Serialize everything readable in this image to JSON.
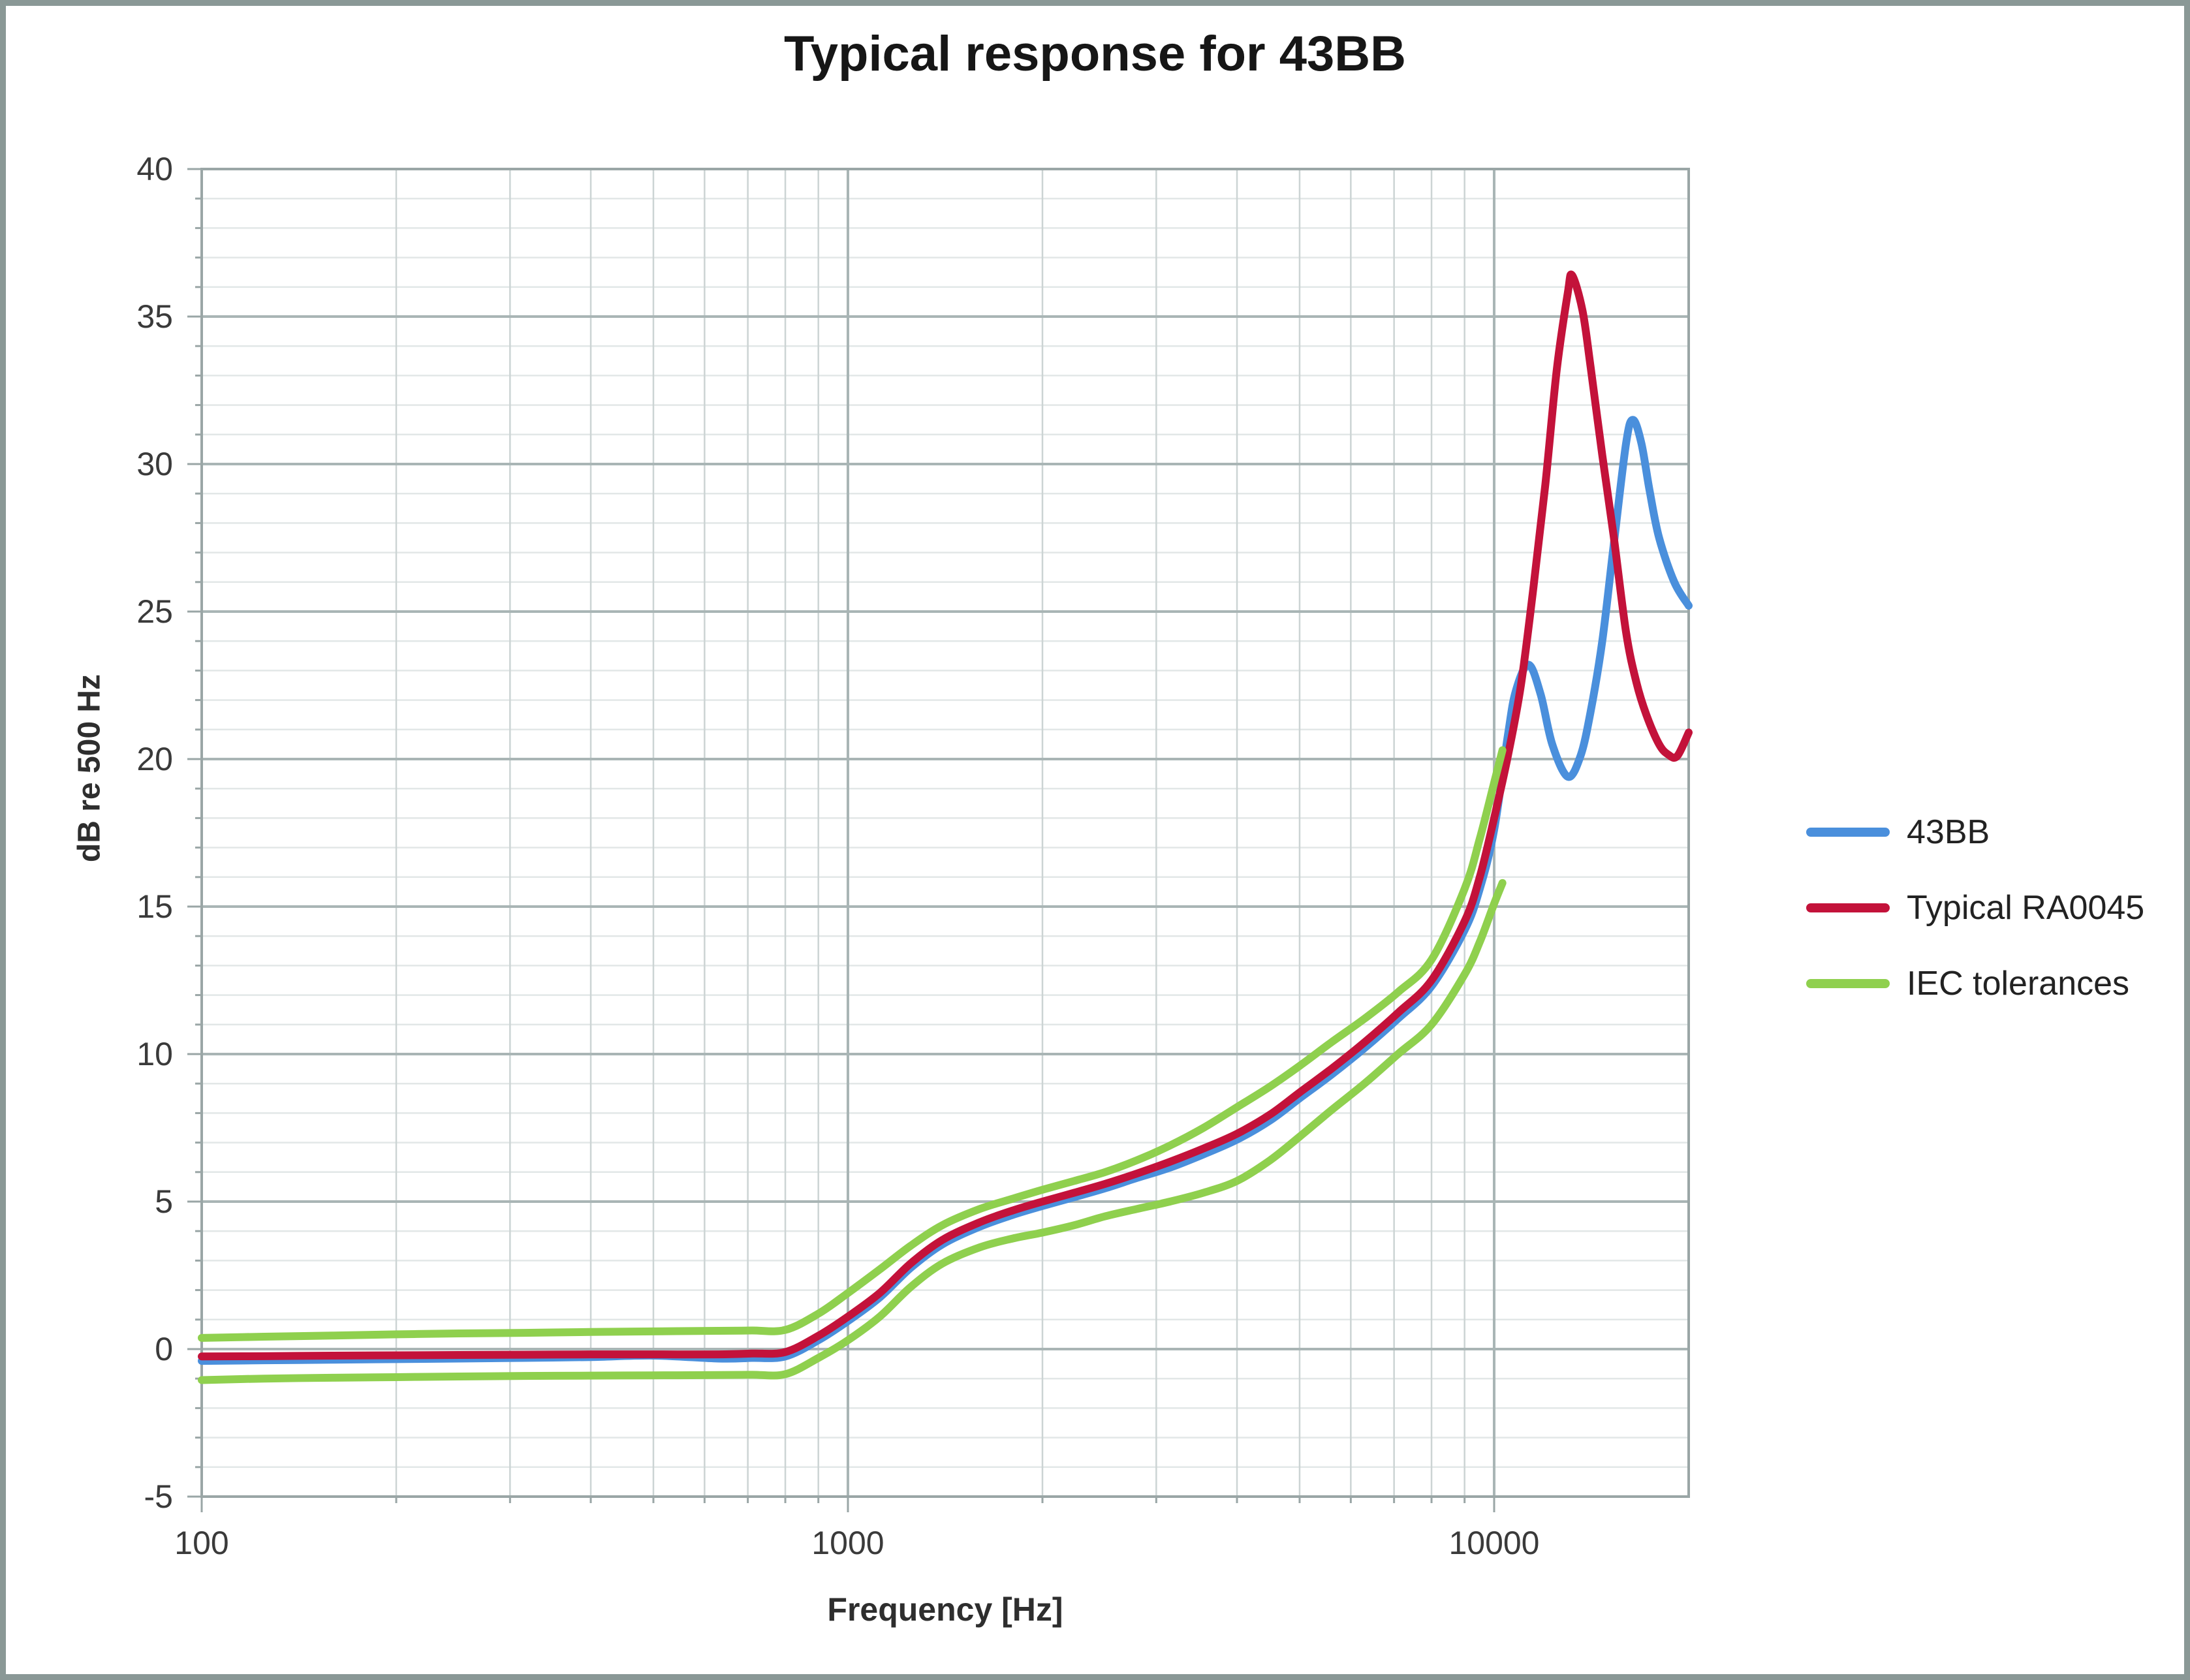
{
  "title": "Typical response for 43BB",
  "legend": {
    "items": [
      {
        "label": "43BB",
        "color": "#4a8fdc"
      },
      {
        "label": "Typical RA0045",
        "color": "#c3123a"
      },
      {
        "label": "IEC tolerances",
        "color": "#8fd04e"
      }
    ]
  },
  "chart_data": {
    "type": "line",
    "title": "Typical response for 43BB",
    "xlabel": "Frequency [Hz]",
    "ylabel": "dB re 500 Hz",
    "x_scale": "log",
    "xlim": [
      100,
      20000
    ],
    "ylim": [
      -5,
      40
    ],
    "x_ticks": [
      100,
      1000,
      10000
    ],
    "y_ticks": [
      -5,
      0,
      5,
      10,
      15,
      20,
      25,
      30,
      35,
      40
    ],
    "y_minor_step": 1,
    "grid": true,
    "legend_position": "right",
    "colors": {
      "grid_minor_h": "#e2e7e7",
      "grid_minor_v": "#ccd4d4",
      "grid_major": "#a9b5b5",
      "plot_border": "#9aa6a6",
      "tick_text": "#3a3a3a"
    },
    "series": [
      {
        "name": "43BB",
        "color": "#4a8fdc",
        "points": [
          [
            100,
            -0.4
          ],
          [
            125,
            -0.38
          ],
          [
            160,
            -0.36
          ],
          [
            200,
            -0.34
          ],
          [
            250,
            -0.32
          ],
          [
            315,
            -0.3
          ],
          [
            400,
            -0.27
          ],
          [
            500,
            -0.22
          ],
          [
            630,
            -0.32
          ],
          [
            710,
            -0.3
          ],
          [
            800,
            -0.25
          ],
          [
            900,
            0.3
          ],
          [
            1000,
            0.95
          ],
          [
            1120,
            1.75
          ],
          [
            1250,
            2.75
          ],
          [
            1400,
            3.55
          ],
          [
            1600,
            4.15
          ],
          [
            1800,
            4.55
          ],
          [
            2000,
            4.85
          ],
          [
            2240,
            5.15
          ],
          [
            2500,
            5.45
          ],
          [
            2800,
            5.8
          ],
          [
            3150,
            6.15
          ],
          [
            3550,
            6.6
          ],
          [
            4000,
            7.1
          ],
          [
            4500,
            7.75
          ],
          [
            5000,
            8.5
          ],
          [
            5600,
            9.3
          ],
          [
            6300,
            10.2
          ],
          [
            7100,
            11.2
          ],
          [
            8000,
            12.3
          ],
          [
            9000,
            14.2
          ],
          [
            9500,
            15.6
          ],
          [
            10000,
            17.6
          ],
          [
            10500,
            20.8
          ],
          [
            10800,
            22.3
          ],
          [
            11300,
            23.2
          ],
          [
            11800,
            22.2
          ],
          [
            12300,
            20.5
          ],
          [
            13000,
            19.4
          ],
          [
            13600,
            20.1
          ],
          [
            14100,
            21.6
          ],
          [
            14700,
            24.0
          ],
          [
            15300,
            27.2
          ],
          [
            16000,
            30.7
          ],
          [
            16400,
            31.5
          ],
          [
            16900,
            30.7
          ],
          [
            17400,
            29.1
          ],
          [
            18000,
            27.5
          ],
          [
            19000,
            26.0
          ],
          [
            20000,
            25.2
          ]
        ]
      },
      {
        "name": "Typical RA0045",
        "color": "#c3123a",
        "points": [
          [
            100,
            -0.25
          ],
          [
            125,
            -0.24
          ],
          [
            160,
            -0.22
          ],
          [
            200,
            -0.21
          ],
          [
            250,
            -0.2
          ],
          [
            315,
            -0.19
          ],
          [
            400,
            -0.18
          ],
          [
            500,
            -0.18
          ],
          [
            630,
            -0.18
          ],
          [
            710,
            -0.15
          ],
          [
            800,
            -0.1
          ],
          [
            900,
            0.45
          ],
          [
            1000,
            1.1
          ],
          [
            1120,
            1.9
          ],
          [
            1250,
            2.9
          ],
          [
            1400,
            3.7
          ],
          [
            1600,
            4.3
          ],
          [
            1800,
            4.7
          ],
          [
            2000,
            5.0
          ],
          [
            2240,
            5.3
          ],
          [
            2500,
            5.6
          ],
          [
            2800,
            5.95
          ],
          [
            3150,
            6.35
          ],
          [
            3550,
            6.8
          ],
          [
            4000,
            7.3
          ],
          [
            4500,
            7.95
          ],
          [
            5000,
            8.7
          ],
          [
            5600,
            9.5
          ],
          [
            6300,
            10.4
          ],
          [
            7100,
            11.4
          ],
          [
            8000,
            12.5
          ],
          [
            9000,
            14.5
          ],
          [
            9500,
            16.0
          ],
          [
            10000,
            18.0
          ],
          [
            10500,
            20.1
          ],
          [
            11000,
            22.5
          ],
          [
            11500,
            25.8
          ],
          [
            12000,
            29.3
          ],
          [
            12500,
            33.2
          ],
          [
            13000,
            35.8
          ],
          [
            13200,
            36.4
          ],
          [
            13700,
            35.2
          ],
          [
            14100,
            33.3
          ],
          [
            14700,
            30.3
          ],
          [
            15300,
            27.6
          ],
          [
            16000,
            24.3
          ],
          [
            16600,
            22.6
          ],
          [
            17200,
            21.5
          ],
          [
            18000,
            20.5
          ],
          [
            18600,
            20.15
          ],
          [
            19200,
            20.1
          ],
          [
            20000,
            20.9
          ]
        ]
      },
      {
        "name": "IEC tolerances (upper)",
        "color": "#8fd04e",
        "points": [
          [
            100,
            0.38
          ],
          [
            125,
            0.42
          ],
          [
            160,
            0.46
          ],
          [
            200,
            0.5
          ],
          [
            250,
            0.53
          ],
          [
            315,
            0.55
          ],
          [
            400,
            0.58
          ],
          [
            500,
            0.6
          ],
          [
            630,
            0.62
          ],
          [
            710,
            0.63
          ],
          [
            800,
            0.65
          ],
          [
            900,
            1.2
          ],
          [
            1000,
            1.9
          ],
          [
            1120,
            2.7
          ],
          [
            1250,
            3.5
          ],
          [
            1400,
            4.2
          ],
          [
            1600,
            4.75
          ],
          [
            1800,
            5.1
          ],
          [
            2000,
            5.4
          ],
          [
            2240,
            5.7
          ],
          [
            2500,
            6.0
          ],
          [
            2800,
            6.4
          ],
          [
            3150,
            6.9
          ],
          [
            3550,
            7.5
          ],
          [
            4000,
            8.2
          ],
          [
            4500,
            8.9
          ],
          [
            5000,
            9.6
          ],
          [
            5600,
            10.4
          ],
          [
            6300,
            11.2
          ],
          [
            7100,
            12.1
          ],
          [
            8000,
            13.2
          ],
          [
            9000,
            15.6
          ],
          [
            9500,
            17.3
          ],
          [
            10000,
            19.2
          ],
          [
            10300,
            20.3
          ]
        ]
      },
      {
        "name": "IEC tolerances (lower)",
        "color": "#8fd04e",
        "points": [
          [
            100,
            -1.05
          ],
          [
            125,
            -1.0
          ],
          [
            160,
            -0.97
          ],
          [
            200,
            -0.95
          ],
          [
            250,
            -0.93
          ],
          [
            315,
            -0.91
          ],
          [
            400,
            -0.9
          ],
          [
            500,
            -0.89
          ],
          [
            630,
            -0.88
          ],
          [
            710,
            -0.87
          ],
          [
            800,
            -0.85
          ],
          [
            900,
            -0.3
          ],
          [
            1000,
            0.3
          ],
          [
            1120,
            1.1
          ],
          [
            1250,
            2.1
          ],
          [
            1400,
            2.9
          ],
          [
            1600,
            3.45
          ],
          [
            1800,
            3.75
          ],
          [
            2000,
            3.95
          ],
          [
            2240,
            4.2
          ],
          [
            2500,
            4.5
          ],
          [
            2800,
            4.75
          ],
          [
            3150,
            5.0
          ],
          [
            3550,
            5.3
          ],
          [
            4000,
            5.7
          ],
          [
            4500,
            6.4
          ],
          [
            5000,
            7.2
          ],
          [
            5600,
            8.1
          ],
          [
            6300,
            9.0
          ],
          [
            7100,
            10.0
          ],
          [
            8000,
            11.0
          ],
          [
            9000,
            12.7
          ],
          [
            9500,
            13.8
          ],
          [
            10000,
            15.1
          ],
          [
            10300,
            15.8
          ]
        ]
      }
    ]
  }
}
